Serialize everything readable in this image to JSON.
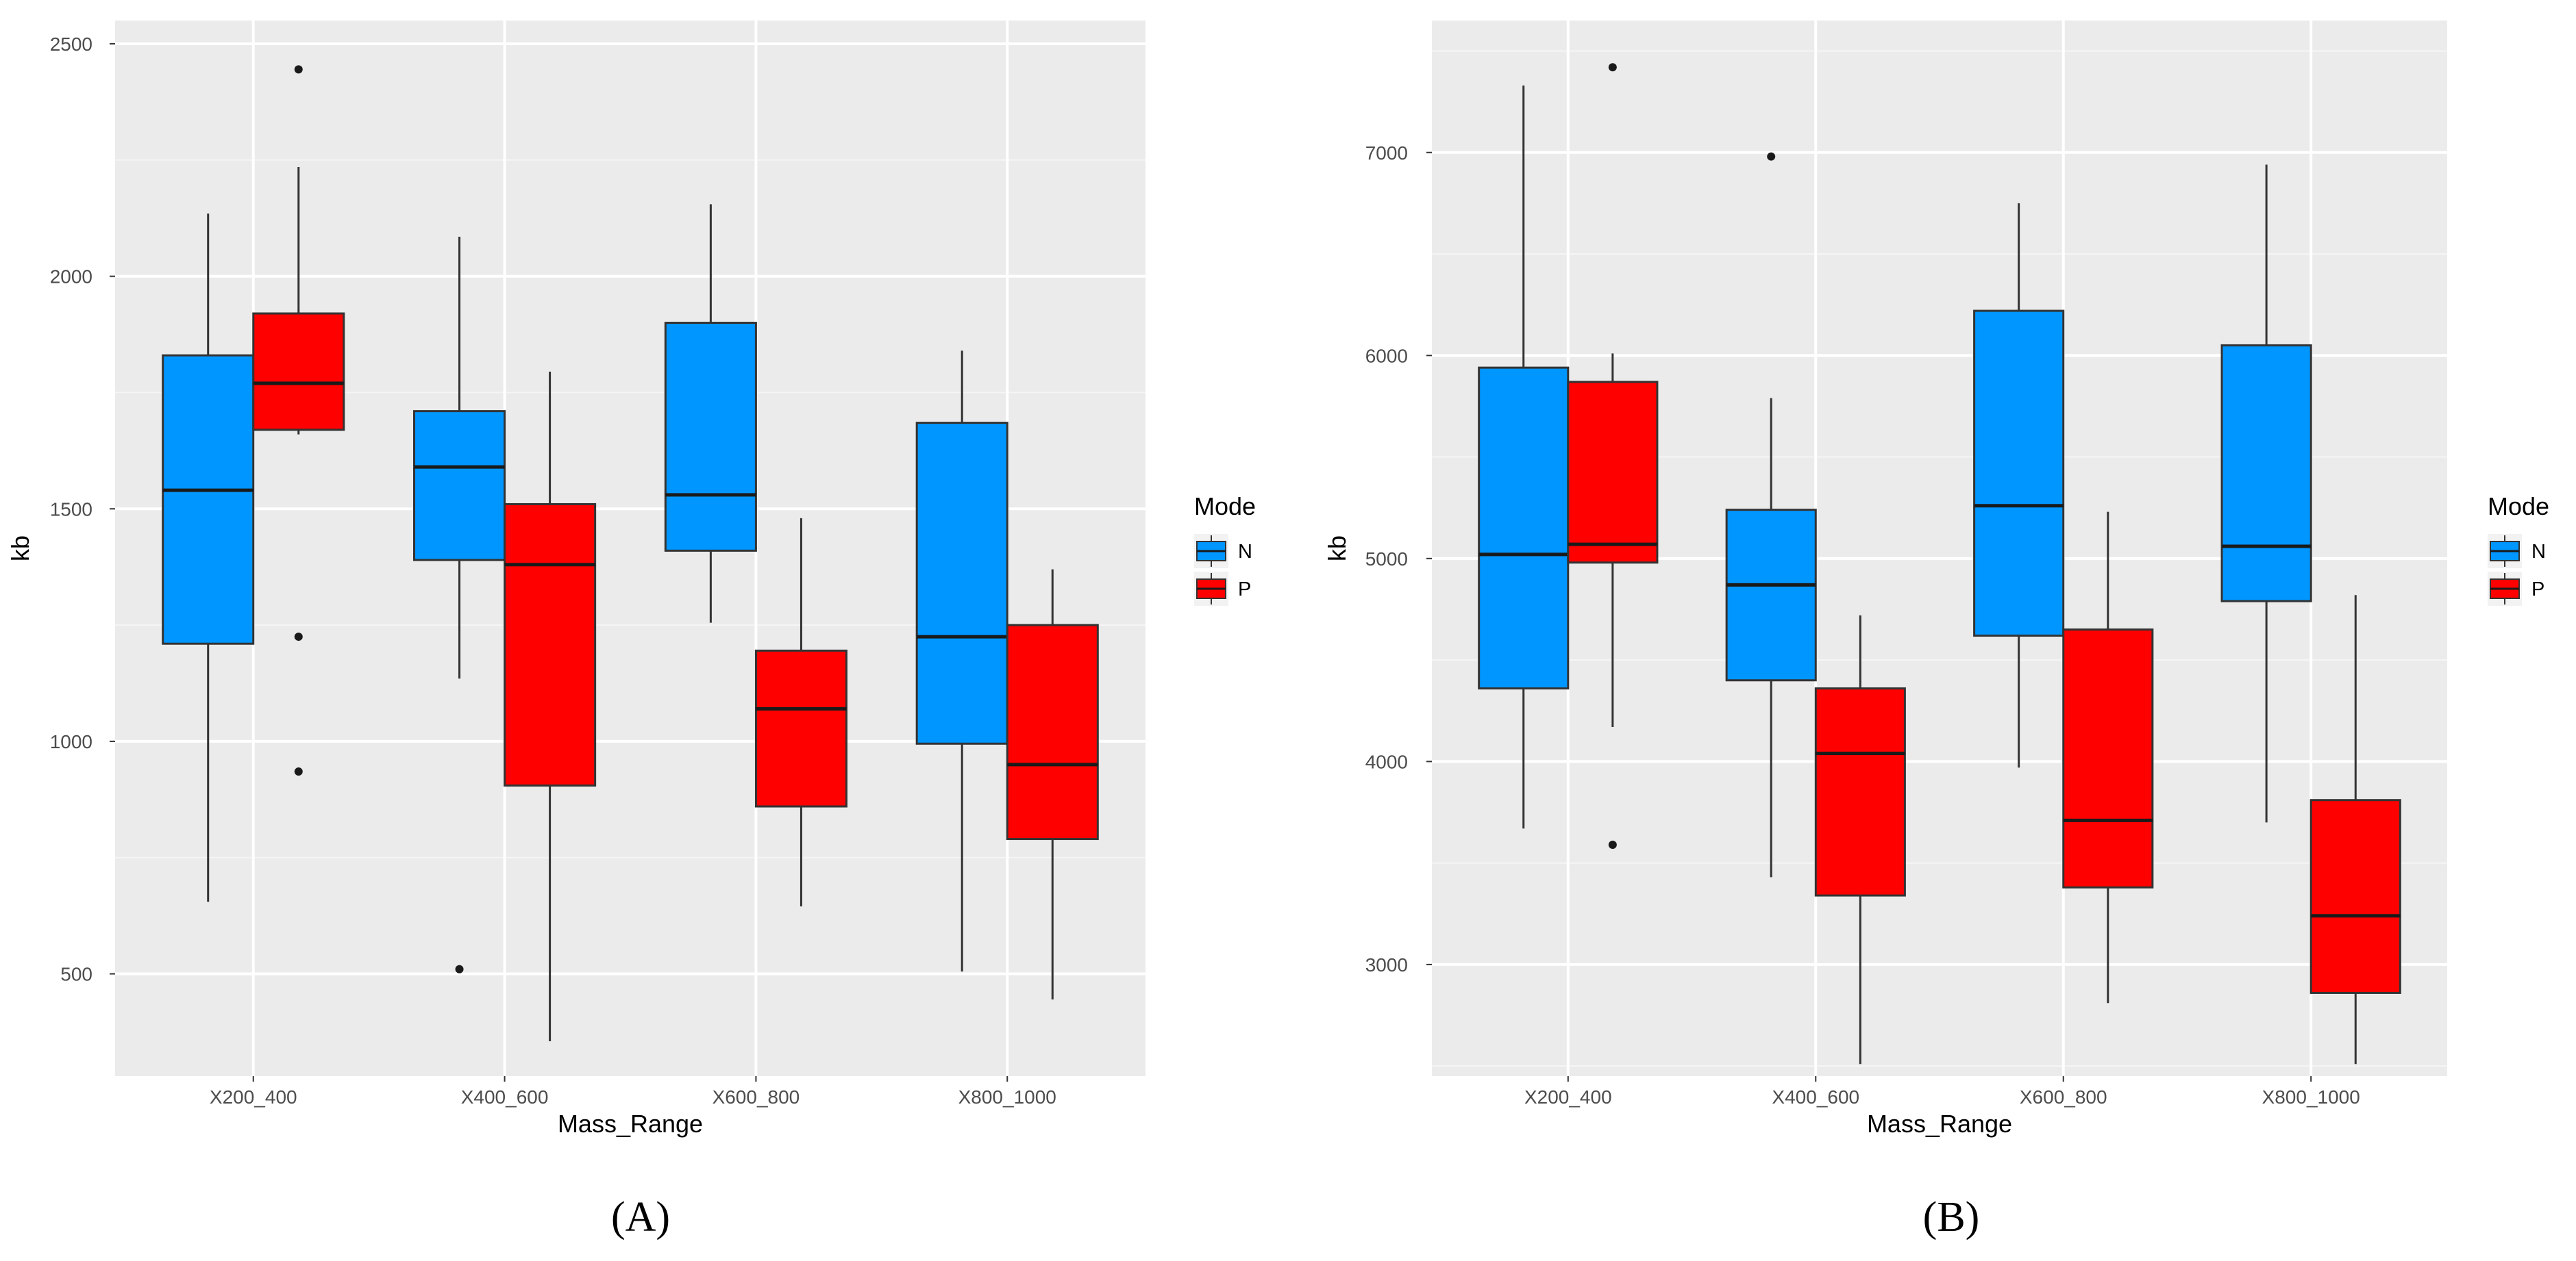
{
  "chart_data": [
    {
      "type": "boxplot",
      "panel": "(A)",
      "xlabel": "Mass_Range",
      "ylabel": "kb",
      "categories": [
        "X200_400",
        "X400_600",
        "X600_800",
        "X800_1000"
      ],
      "ylim": [
        280,
        2550
      ],
      "yticks": [
        500,
        1000,
        1500,
        2000,
        2500
      ],
      "grid": true,
      "legend": {
        "title": "Mode",
        "position": "right",
        "entries": [
          "N",
          "P"
        ]
      },
      "series": [
        {
          "name": "N",
          "color": "#0096FF",
          "boxes": [
            {
              "whisker_low": 655,
              "q1": 1210,
              "median": 1540,
              "q3": 1830,
              "whisker_high": 2135,
              "outliers": []
            },
            {
              "whisker_low": 1135,
              "q1": 1390,
              "median": 1590,
              "q3": 1710,
              "whisker_high": 2085,
              "outliers": [
                510
              ]
            },
            {
              "whisker_low": 1255,
              "q1": 1410,
              "median": 1530,
              "q3": 1900,
              "whisker_high": 2155,
              "outliers": []
            },
            {
              "whisker_low": 505,
              "q1": 995,
              "median": 1225,
              "q3": 1685,
              "whisker_high": 1840,
              "outliers": []
            }
          ]
        },
        {
          "name": "P",
          "color": "#FF0000",
          "boxes": [
            {
              "whisker_low": 1660,
              "q1": 1670,
              "median": 1770,
              "q3": 1920,
              "whisker_high": 2235,
              "outliers": [
                2445,
                1225,
                935
              ]
            },
            {
              "whisker_low": 355,
              "q1": 905,
              "median": 1380,
              "q3": 1510,
              "whisker_high": 1795,
              "outliers": []
            },
            {
              "whisker_low": 645,
              "q1": 860,
              "median": 1070,
              "q3": 1195,
              "whisker_high": 1480,
              "outliers": []
            },
            {
              "whisker_low": 445,
              "q1": 790,
              "median": 950,
              "q3": 1250,
              "whisker_high": 1370,
              "outliers": []
            }
          ]
        }
      ]
    },
    {
      "type": "boxplot",
      "panel": "(B)",
      "xlabel": "Mass_Range",
      "ylabel": "kb",
      "categories": [
        "X200_400",
        "X400_600",
        "X600_800",
        "X800_1000"
      ],
      "ylim": [
        2450,
        7650
      ],
      "yticks": [
        3000,
        4000,
        5000,
        6000,
        7000
      ],
      "grid": true,
      "legend": {
        "title": "Mode",
        "position": "right",
        "entries": [
          "N",
          "P"
        ]
      },
      "series": [
        {
          "name": "N",
          "color": "#0096FF",
          "boxes": [
            {
              "whisker_low": 3670,
              "q1": 4360,
              "median": 5020,
              "q3": 5940,
              "whisker_high": 7330,
              "outliers": []
            },
            {
              "whisker_low": 3430,
              "q1": 4400,
              "median": 4870,
              "q3": 5240,
              "whisker_high": 5790,
              "outliers": [
                6980
              ]
            },
            {
              "whisker_low": 3970,
              "q1": 4620,
              "median": 5260,
              "q3": 6220,
              "whisker_high": 6750,
              "outliers": []
            },
            {
              "whisker_low": 3700,
              "q1": 4790,
              "median": 5060,
              "q3": 6050,
              "whisker_high": 6940,
              "outliers": []
            }
          ]
        },
        {
          "name": "P",
          "color": "#FF0000",
          "boxes": [
            {
              "whisker_low": 4170,
              "q1": 4980,
              "median": 5070,
              "q3": 5870,
              "whisker_high": 6010,
              "outliers": [
                7420,
                3590
              ]
            },
            {
              "whisker_low": 2510,
              "q1": 3340,
              "median": 4040,
              "q3": 4360,
              "whisker_high": 4720,
              "outliers": []
            },
            {
              "whisker_low": 2810,
              "q1": 3380,
              "median": 3710,
              "q3": 4650,
              "whisker_high": 5230,
              "outliers": []
            },
            {
              "whisker_low": 2510,
              "q1": 2860,
              "median": 3240,
              "q3": 3810,
              "whisker_high": 4820,
              "outliers": []
            }
          ]
        }
      ]
    }
  ]
}
